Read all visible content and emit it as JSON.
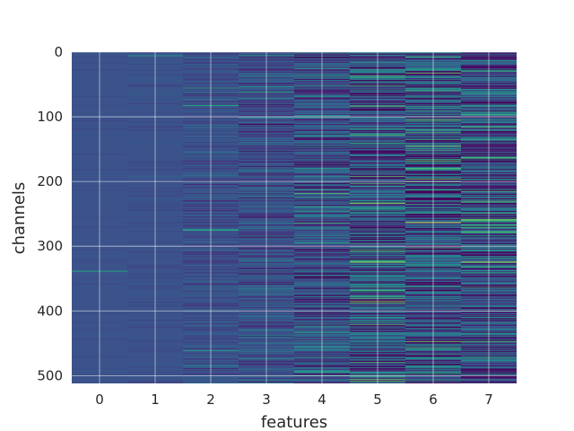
{
  "chart_data": {
    "type": "heatmap",
    "xlabel": "features",
    "ylabel": "channels",
    "x_categories": [
      0,
      1,
      2,
      3,
      4,
      5,
      6,
      7
    ],
    "x_ticks": [
      0,
      1,
      2,
      3,
      4,
      5,
      6,
      7
    ],
    "y_ticks": [
      0,
      100,
      200,
      300,
      400,
      500
    ],
    "y_range": [
      0,
      512
    ],
    "n_channels": 512,
    "grid": true,
    "colormap": "viridis",
    "background_color": "#3b528b",
    "feature_intensity": [
      0.02,
      0.04,
      0.12,
      0.22,
      0.35,
      0.55,
      0.55,
      0.5
    ],
    "notable_channels": [
      {
        "feature": 4,
        "channel": 218,
        "value": 0.75
      },
      {
        "feature": 4,
        "channel": 264,
        "value": 0.7
      },
      {
        "feature": 5,
        "channel": 233,
        "value": 0.9
      },
      {
        "feature": 5,
        "channel": 385,
        "value": 0.85
      },
      {
        "feature": 5,
        "channel": 16,
        "value": 0.6
      },
      {
        "feature": 6,
        "channel": 263,
        "value": 1.0
      },
      {
        "feature": 6,
        "channel": 213,
        "value": 0.65
      },
      {
        "feature": 6,
        "channel": 466,
        "value": 0.6
      },
      {
        "feature": 7,
        "channel": 259,
        "value": 0.85
      },
      {
        "feature": 7,
        "channel": 324,
        "value": 0.95
      },
      {
        "feature": 7,
        "channel": 135,
        "value": 0.65
      },
      {
        "feature": 7,
        "channel": 64,
        "value": 0.6
      }
    ]
  }
}
